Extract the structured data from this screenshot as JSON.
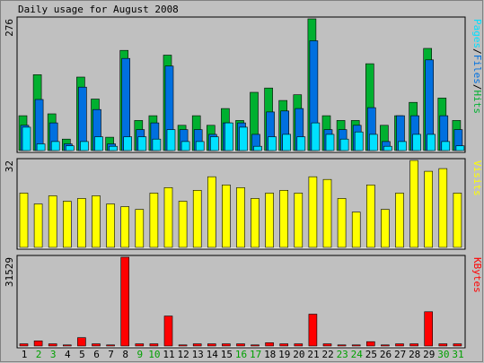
{
  "chart_data": {
    "type": "bar",
    "title": "Daily usage for August 2008",
    "categories": [
      "1",
      "2",
      "3",
      "4",
      "5",
      "6",
      "7",
      "8",
      "9",
      "10",
      "11",
      "12",
      "13",
      "14",
      "15",
      "16",
      "17",
      "18",
      "19",
      "20",
      "21",
      "22",
      "23",
      "24",
      "25",
      "26",
      "27",
      "28",
      "29",
      "30",
      "31"
    ],
    "weekend_days": [
      "2",
      "3",
      "9",
      "10",
      "16",
      "17",
      "23",
      "24",
      "30",
      "31"
    ],
    "panels": [
      {
        "id": "hits",
        "y_max_label": "276",
        "y_max": 276,
        "legend": [
          "Pages",
          "Files",
          "Hits"
        ],
        "series": [
          {
            "name": "Hits",
            "color": "#00b030",
            "values": [
              73,
              159,
              77,
              24,
              154,
              108,
              28,
              210,
              63,
              73,
              200,
              53,
              73,
              53,
              88,
              63,
              122,
              131,
              105,
              117,
              276,
              73,
              63,
              63,
              182,
              53,
              73,
              101,
              214,
              110,
              63
            ]
          },
          {
            "name": "Files",
            "color": "#0070e0",
            "values": [
              53,
              107,
              58,
              14,
              133,
              86,
              14,
              193,
              44,
              58,
              177,
              44,
              44,
              34,
              58,
              58,
              34,
              81,
              83,
              88,
              230,
              44,
              44,
              53,
              90,
              19,
              73,
              73,
              190,
              73,
              44
            ]
          },
          {
            "name": "Pages",
            "color": "#00e0ff",
            "values": [
              49,
              14,
              19,
              10,
              19,
              29,
              9,
              29,
              29,
              24,
              44,
              19,
              19,
              29,
              58,
              49,
              9,
              29,
              34,
              29,
              58,
              34,
              24,
              39,
              34,
              9,
              19,
              34,
              34,
              19,
              10
            ]
          }
        ]
      },
      {
        "id": "visits",
        "y_max_label": "32",
        "y_max": 32,
        "legend": [
          "Visits"
        ],
        "series": [
          {
            "name": "Visits",
            "color": "#ffff00",
            "values": [
              20,
              16,
              19,
              17,
              18,
              19,
              16,
              15,
              14,
              20,
              22,
              17,
              21,
              26,
              23,
              22,
              18,
              20,
              21,
              20,
              26,
              25,
              18,
              13,
              23,
              14,
              20,
              32,
              28,
              29,
              20
            ]
          }
        ]
      },
      {
        "id": "kbytes",
        "y_max_label": "31529",
        "y_max": 31529,
        "legend": [
          "KBytes"
        ],
        "series": [
          {
            "name": "KBytes",
            "color": "#ff0000",
            "values": [
              760,
              1800,
              760,
              380,
              2950,
              760,
              380,
              31529,
              760,
              760,
              10650,
              380,
              760,
              760,
              760,
              760,
              380,
              1140,
              760,
              760,
              11300,
              760,
              380,
              380,
              1520,
              380,
              760,
              760,
              12170,
              760,
              760
            ]
          }
        ]
      }
    ]
  }
}
